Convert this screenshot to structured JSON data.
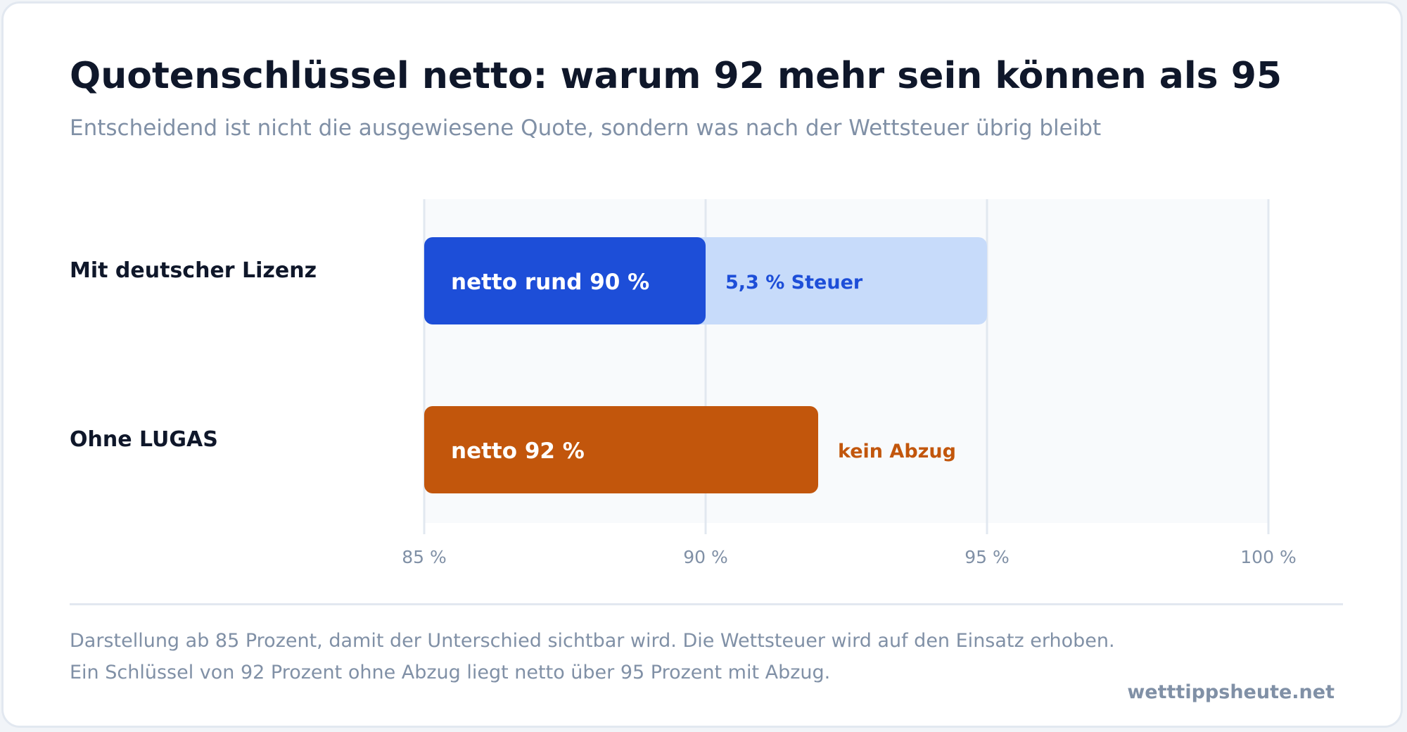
{
  "header": {
    "title": "Quotenschlüssel netto: warum 92 mehr sein können als 95",
    "subtitle": "Entscheidend ist nicht die ausgewiesene Quote, sondern was nach der Wettsteuer übrig bleibt"
  },
  "chart_data": {
    "type": "bar",
    "orientation": "horizontal",
    "stacked": true,
    "title": "Quotenschlüssel netto: warum 92 mehr sein können als 95",
    "subtitle": "Entscheidend ist nicht die ausgewiesene Quote, sondern was nach der Wettsteuer übrig bleibt",
    "xlim": [
      85,
      100
    ],
    "ticks": [
      85,
      90,
      95,
      100
    ],
    "tick_labels": [
      "85 %",
      "90 %",
      "95 %",
      "100 %"
    ],
    "grid": true,
    "categories": [
      "Mit deutscher Lizenz",
      "Ohne LUGAS"
    ],
    "rows": [
      {
        "label": "Mit deutscher Lizenz",
        "segments": [
          {
            "from": 85,
            "to": 90,
            "label": "netto rund 90 %",
            "color": "#1d4ed8",
            "text_color": "#ffffff",
            "label_inside": true
          },
          {
            "from": 90,
            "to": 95,
            "label": "5,3 % Steuer",
            "color": "#c7dbfa",
            "text_color": "#1d4ed8",
            "label_inside": true
          }
        ]
      },
      {
        "label": "Ohne LUGAS",
        "segments": [
          {
            "from": 85,
            "to": 92,
            "label": "netto 92 %",
            "color": "#c2560c",
            "text_color": "#ffffff",
            "label_inside": true
          }
        ],
        "annotation": {
          "label": "kein Abzug",
          "color": "#c2560c"
        }
      }
    ]
  },
  "footer": {
    "note_line1": "Darstellung ab 85 Prozent, damit der Unterschied sichtbar wird. Die Wettsteuer wird auf den Einsatz erhoben.",
    "note_line2": "Ein Schlüssel von 92 Prozent ohne Abzug liegt netto über 95 Prozent mit Abzug.",
    "source": "wetttippsheute.net"
  },
  "colors": {
    "title": "#0f172a",
    "muted": "#8090a6",
    "plot_bg": "#f8fafc",
    "grid": "#e2e8f0"
  }
}
